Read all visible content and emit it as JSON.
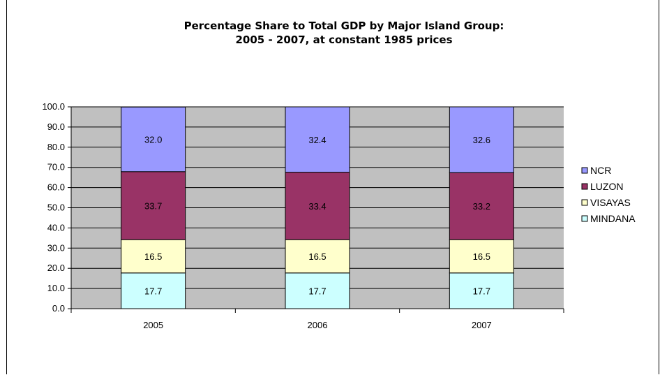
{
  "chart_data": {
    "type": "bar",
    "stacked": true,
    "title": "Percentage Share to Total GDP by Major Island Group:",
    "subtitle": "2005 - 2007, at constant 1985 prices",
    "xlabel": "",
    "ylabel": "",
    "ylim": [
      0,
      100
    ],
    "yticks": [
      "0.0",
      "10.0",
      "20.0",
      "30.0",
      "40.0",
      "50.0",
      "60.0",
      "70.0",
      "80.0",
      "90.0",
      "100.0"
    ],
    "categories": [
      "2005",
      "2006",
      "2007"
    ],
    "grid": true,
    "legend": "right",
    "series": [
      {
        "name": "MINDANA",
        "values": [
          17.7,
          17.7,
          17.7
        ],
        "labels": [
          "17.7",
          "17.7",
          "17.7"
        ],
        "color": "#ccffff"
      },
      {
        "name": "VISAYAS",
        "values": [
          16.5,
          16.5,
          16.5
        ],
        "labels": [
          "16.5",
          "16.5",
          "16.5"
        ],
        "color": "#ffffcc"
      },
      {
        "name": "LUZON",
        "values": [
          33.7,
          33.4,
          33.2
        ],
        "labels": [
          "33.7",
          "33.4",
          "33.2"
        ],
        "color": "#993366"
      },
      {
        "name": "NCR",
        "values": [
          32.0,
          32.4,
          32.6
        ],
        "labels": [
          "32.0",
          "32.4",
          "32.6"
        ],
        "color": "#9999ff"
      }
    ],
    "legend_order": [
      "NCR",
      "LUZON",
      "VISAYAS",
      "MINDANA"
    ],
    "plot_background": "#c0c0c0"
  }
}
